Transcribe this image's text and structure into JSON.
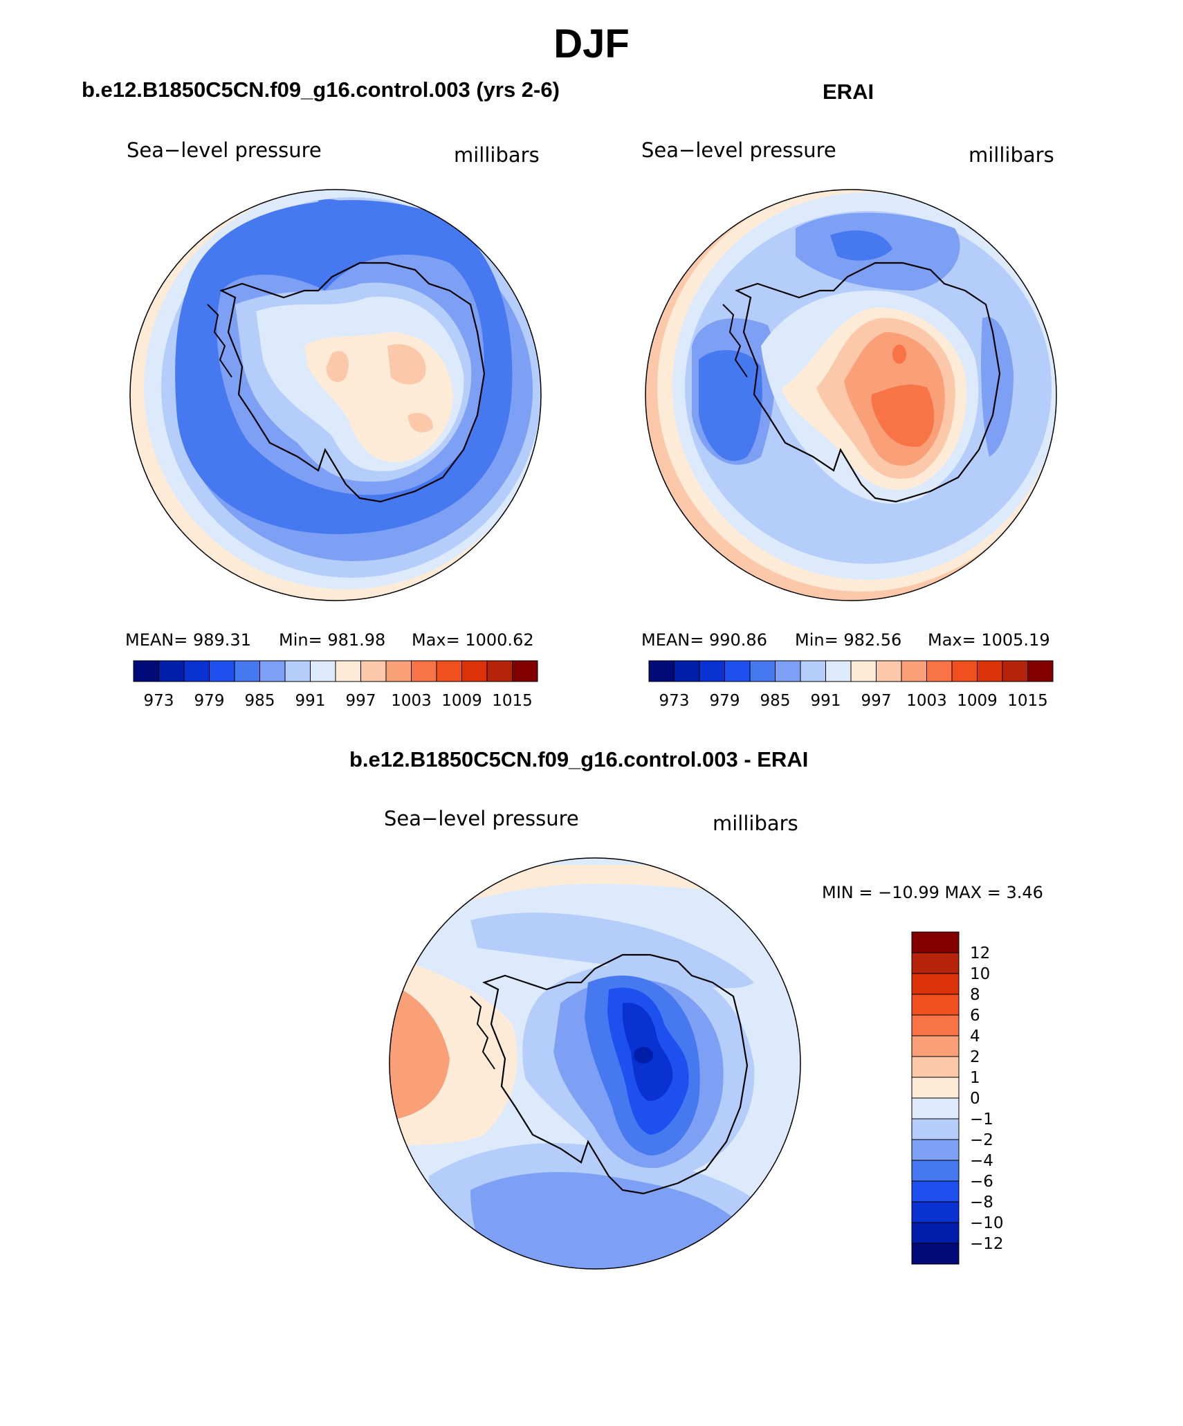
{
  "figure_title": "DJF",
  "panels": {
    "model": {
      "title": "b.e12.B1850C5CN.f09_g16.control.003 (yrs 2-6)",
      "variable": "Sea−level pressure",
      "units": "millibars",
      "mean": "MEAN=  989.31",
      "min": "Min=  981.98",
      "max": "Max=  1000.62"
    },
    "obs": {
      "title": "ERAI",
      "variable": "Sea−level pressure",
      "units": "millibars",
      "mean": "MEAN=  990.86",
      "min": "Min=  982.56",
      "max": "Max=  1005.19"
    },
    "diff": {
      "title": "b.e12.B1850C5CN.f09_g16.control.003 - ERAI",
      "variable": "Sea−level pressure",
      "units": "millibars",
      "minmax": "MIN = −10.99  MAX =     3.46"
    }
  },
  "abs_colorbar": {
    "colors": [
      "#000a78",
      "#001eaa",
      "#0a32d2",
      "#1e50f0",
      "#4678f0",
      "#7da0f5",
      "#b4cdfa",
      "#dceafc",
      "#fdebd8",
      "#fcc8aa",
      "#faa078",
      "#f87446",
      "#f0501e",
      "#dc320a",
      "#b4230a",
      "#820000"
    ],
    "tick_labels": [
      "973",
      "979",
      "985",
      "991",
      "997",
      "1003",
      "1009",
      "1015"
    ]
  },
  "diff_colorbar": {
    "colors": [
      "#000a78",
      "#001eaa",
      "#0a32d2",
      "#1e50f0",
      "#4678f0",
      "#7da0f5",
      "#b4cdfa",
      "#dceafc",
      "#fdebd8",
      "#fcc8aa",
      "#faa078",
      "#f87446",
      "#f0501e",
      "#dc320a",
      "#b4230a",
      "#820000"
    ],
    "tick_labels": [
      "12",
      "10",
      "8",
      "6",
      "4",
      "2",
      "1",
      "0",
      "−1",
      "−2",
      "−4",
      "−6",
      "−8",
      "−10",
      "−12"
    ]
  }
}
